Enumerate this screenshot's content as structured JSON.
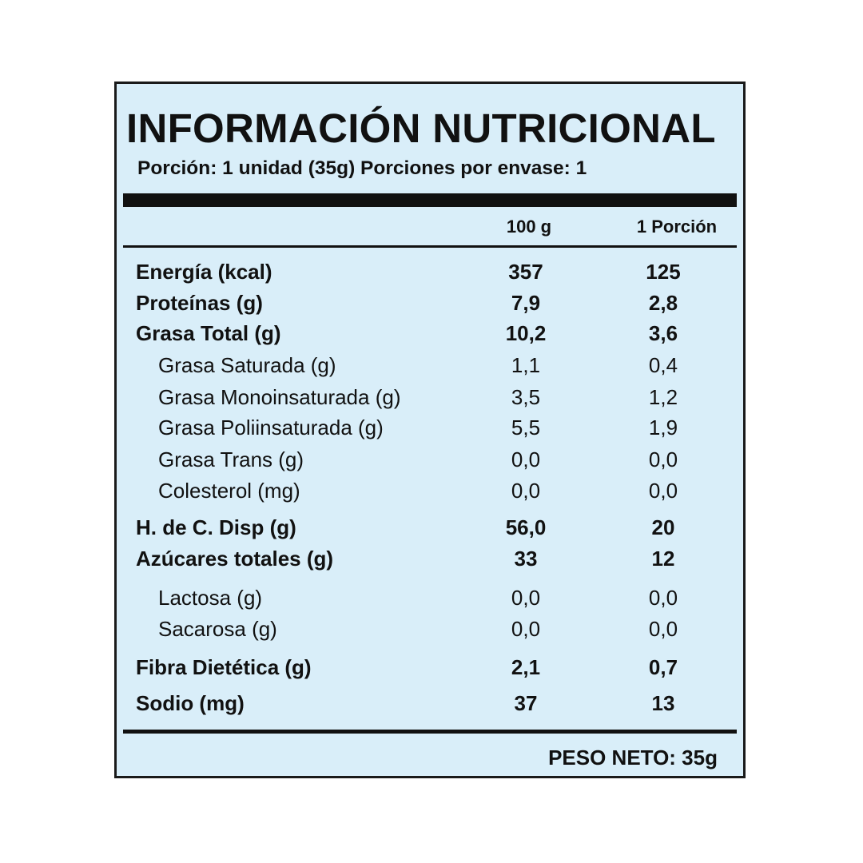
{
  "label": {
    "title": "INFORMACIÓN NUTRICIONAL",
    "serving_line": "Porción: 1 unidad (35g) Porciones por envase: 1",
    "columns": [
      "100 g",
      "1 Porción"
    ],
    "rows": [
      {
        "name": "Energía (kcal)",
        "per_100g": "357",
        "per_portion": "125"
      },
      {
        "name": "Proteínas (g)",
        "per_100g": "7,9",
        "per_portion": "2,8"
      },
      {
        "name": "Grasa Total (g)",
        "per_100g": "10,2",
        "per_portion": "3,6"
      },
      {
        "name": "Grasa Saturada (g)",
        "per_100g": "1,1",
        "per_portion": "0,4"
      },
      {
        "name": "Grasa Monoinsaturada (g)",
        "per_100g": "3,5",
        "per_portion": "1,2"
      },
      {
        "name": "Grasa Poliinsaturada (g)",
        "per_100g": "5,5",
        "per_portion": "1,9"
      },
      {
        "name": "Grasa Trans (g)",
        "per_100g": "0,0",
        "per_portion": "0,0"
      },
      {
        "name": "Colesterol (mg)",
        "per_100g": "0,0",
        "per_portion": "0,0"
      },
      {
        "name": "H. de C. Disp (g)",
        "per_100g": "56,0",
        "per_portion": "20"
      },
      {
        "name": "Azúcares totales (g)",
        "per_100g": "33",
        "per_portion": "12"
      },
      {
        "name": "Lactosa (g)",
        "per_100g": "0,0",
        "per_portion": "0,0"
      },
      {
        "name": "Sacarosa (g)",
        "per_100g": "0,0",
        "per_portion": "0,0"
      },
      {
        "name": "Fibra Dietética (g)",
        "per_100g": "2,1",
        "per_portion": "0,7"
      },
      {
        "name": "Sodio (mg)",
        "per_100g": "37",
        "per_portion": "13"
      }
    ],
    "net_weight": "PESO NETO:  35g"
  },
  "colors": {
    "background": "#d9eef9",
    "border": "#1a1a1a",
    "text": "#111111"
  }
}
